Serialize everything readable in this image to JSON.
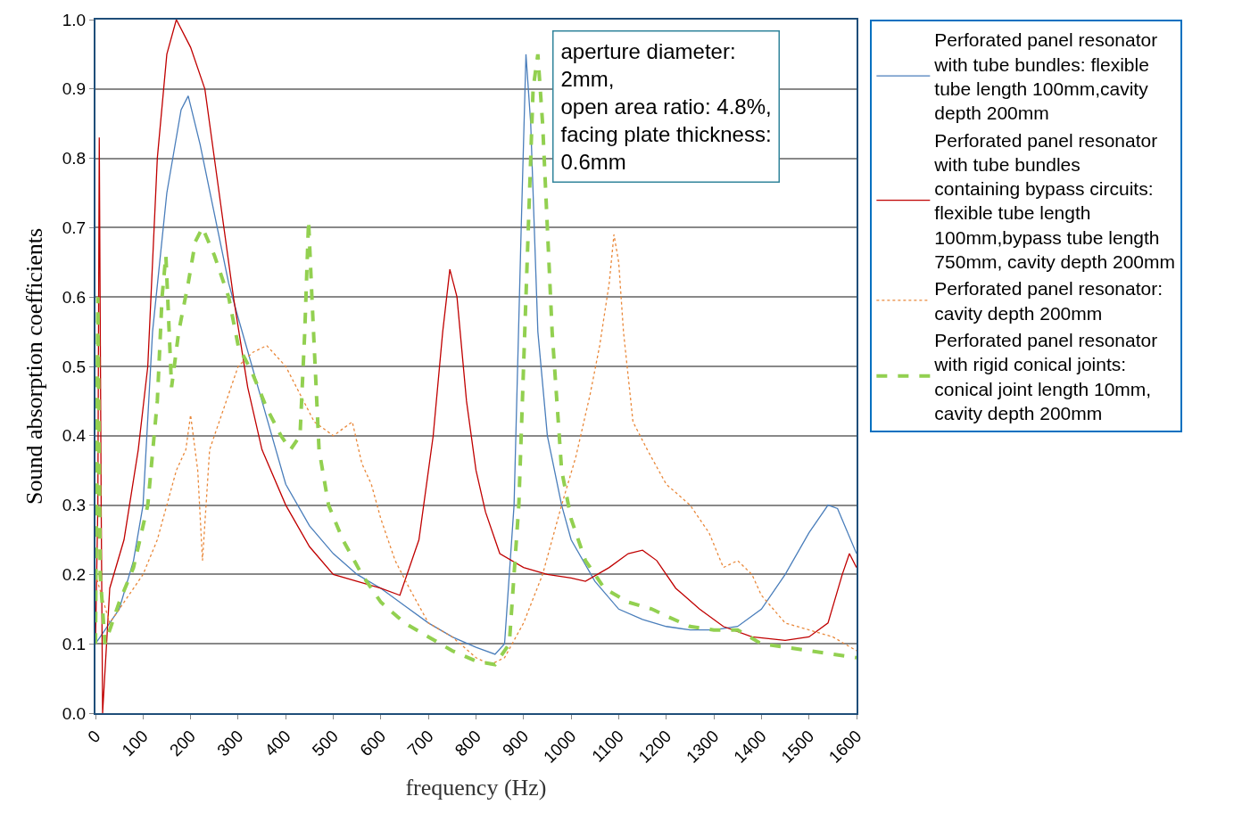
{
  "chart_data": {
    "type": "line",
    "xlabel": "frequency (Hz)",
    "ylabel": "Sound absorption coefficients",
    "xlim": [
      0,
      1600
    ],
    "xticks": [
      0,
      100,
      200,
      300,
      400,
      500,
      600,
      700,
      800,
      900,
      1000,
      1100,
      1200,
      1300,
      1400,
      1500,
      1600
    ],
    "ylim": [
      0,
      1.0
    ],
    "yticks": [
      {
        "value": 0,
        "label": "0.0"
      },
      0.1,
      0.2,
      0.3,
      0.4,
      0.5,
      0.6,
      0.7,
      0.8,
      0.9,
      {
        "value": 1.0,
        "label": "1.0"
      }
    ],
    "grid": "y",
    "legend": "right",
    "marker": "none",
    "annotations": [
      "aperture diameter:\n2mm,\nopen area ratio: 4.8%,\nfacing plate thickness:\n0.6mm"
    ],
    "series": [
      {
        "name": "Perforated panel resonator with tube bundles: flexible tube length 100mm,cavity depth 200mm",
        "color": "#4a7ebb",
        "line_style": "solid",
        "x": [
          0,
          20,
          50,
          80,
          100,
          120,
          150,
          180,
          195,
          220,
          250,
          280,
          300,
          350,
          400,
          450,
          500,
          550,
          600,
          650,
          700,
          750,
          800,
          840,
          860,
          880,
          895,
          905,
          915,
          930,
          950,
          980,
          1000,
          1050,
          1100,
          1150,
          1200,
          1250,
          1300,
          1350,
          1400,
          1450,
          1500,
          1540,
          1560,
          1600
        ],
        "values": [
          0.1,
          0.12,
          0.15,
          0.22,
          0.3,
          0.55,
          0.75,
          0.87,
          0.89,
          0.82,
          0.72,
          0.62,
          0.57,
          0.45,
          0.33,
          0.27,
          0.23,
          0.2,
          0.18,
          0.155,
          0.13,
          0.11,
          0.095,
          0.085,
          0.1,
          0.3,
          0.7,
          0.95,
          0.85,
          0.55,
          0.4,
          0.3,
          0.25,
          0.19,
          0.15,
          0.135,
          0.125,
          0.12,
          0.12,
          0.125,
          0.15,
          0.2,
          0.26,
          0.3,
          0.295,
          0.23
        ]
      },
      {
        "name": "Perforated panel resonator with tube bundles containing bypass circuits: flexible tube length 100mm,bypass tube length 750mm, cavity depth 200mm",
        "color": "#c00000",
        "line_style": "solid",
        "x": [
          0,
          5,
          8,
          12,
          15,
          30,
          60,
          90,
          110,
          130,
          150,
          170,
          200,
          230,
          260,
          290,
          320,
          350,
          400,
          450,
          500,
          550,
          600,
          640,
          680,
          710,
          730,
          745,
          760,
          780,
          800,
          820,
          850,
          900,
          950,
          1000,
          1030,
          1080,
          1120,
          1150,
          1180,
          1220,
          1270,
          1320,
          1380,
          1450,
          1500,
          1540,
          1570,
          1585,
          1600
        ],
        "values": [
          0.1,
          0.3,
          0.83,
          0.3,
          0.0,
          0.18,
          0.25,
          0.38,
          0.5,
          0.8,
          0.95,
          1.0,
          0.96,
          0.9,
          0.75,
          0.6,
          0.47,
          0.38,
          0.3,
          0.24,
          0.2,
          0.19,
          0.18,
          0.17,
          0.25,
          0.4,
          0.55,
          0.64,
          0.6,
          0.45,
          0.35,
          0.29,
          0.23,
          0.21,
          0.2,
          0.195,
          0.19,
          0.21,
          0.23,
          0.235,
          0.22,
          0.18,
          0.15,
          0.125,
          0.11,
          0.105,
          0.11,
          0.13,
          0.2,
          0.23,
          0.21
        ]
      },
      {
        "name": "Perforated panel resonator: cavity depth 200mm",
        "color": "#e9883a",
        "line_style": "dotted",
        "x": [
          0,
          30,
          60,
          100,
          130,
          150,
          170,
          190,
          200,
          215,
          225,
          240,
          270,
          300,
          330,
          360,
          400,
          430,
          460,
          500,
          540,
          560,
          580,
          600,
          630,
          660,
          700,
          750,
          800,
          830,
          860,
          900,
          940,
          980,
          1010,
          1040,
          1060,
          1080,
          1090,
          1100,
          1110,
          1130,
          1160,
          1200,
          1250,
          1290,
          1320,
          1350,
          1380,
          1400,
          1450,
          1500,
          1550,
          1600
        ],
        "values": [
          0.2,
          0.13,
          0.16,
          0.2,
          0.25,
          0.3,
          0.35,
          0.38,
          0.43,
          0.35,
          0.22,
          0.38,
          0.44,
          0.5,
          0.52,
          0.53,
          0.5,
          0.46,
          0.42,
          0.4,
          0.42,
          0.36,
          0.33,
          0.28,
          0.22,
          0.18,
          0.13,
          0.11,
          0.08,
          0.07,
          0.08,
          0.13,
          0.2,
          0.3,
          0.37,
          0.46,
          0.53,
          0.62,
          0.69,
          0.65,
          0.55,
          0.42,
          0.38,
          0.33,
          0.3,
          0.26,
          0.21,
          0.22,
          0.2,
          0.17,
          0.13,
          0.12,
          0.11,
          0.09
        ]
      },
      {
        "name": "Perforated panel resonator with rigid conical joints: conical joint length 10mm, cavity depth 200mm",
        "color": "#92d050",
        "line_style": "dashed",
        "x": [
          0,
          5,
          10,
          20,
          50,
          80,
          110,
          130,
          140,
          148,
          160,
          175,
          195,
          210,
          225,
          250,
          280,
          300,
          330,
          360,
          390,
          410,
          430,
          440,
          448,
          455,
          470,
          490,
          520,
          560,
          600,
          650,
          700,
          750,
          800,
          840,
          870,
          890,
          905,
          920,
          930,
          940,
          960,
          980,
          1000,
          1030,
          1070,
          1120,
          1170,
          1200,
          1250,
          1300,
          1350,
          1400,
          1450,
          1500,
          1550,
          1600
        ],
        "values": [
          0.1,
          0.6,
          0.2,
          0.1,
          0.16,
          0.21,
          0.3,
          0.45,
          0.6,
          0.66,
          0.47,
          0.55,
          0.62,
          0.68,
          0.7,
          0.66,
          0.6,
          0.53,
          0.49,
          0.44,
          0.4,
          0.38,
          0.4,
          0.55,
          0.71,
          0.6,
          0.38,
          0.3,
          0.25,
          0.2,
          0.16,
          0.13,
          0.11,
          0.09,
          0.075,
          0.07,
          0.1,
          0.3,
          0.6,
          0.9,
          0.95,
          0.85,
          0.55,
          0.35,
          0.28,
          0.22,
          0.18,
          0.16,
          0.15,
          0.14,
          0.125,
          0.12,
          0.12,
          0.1,
          0.095,
          0.09,
          0.085,
          0.08
        ]
      }
    ]
  }
}
